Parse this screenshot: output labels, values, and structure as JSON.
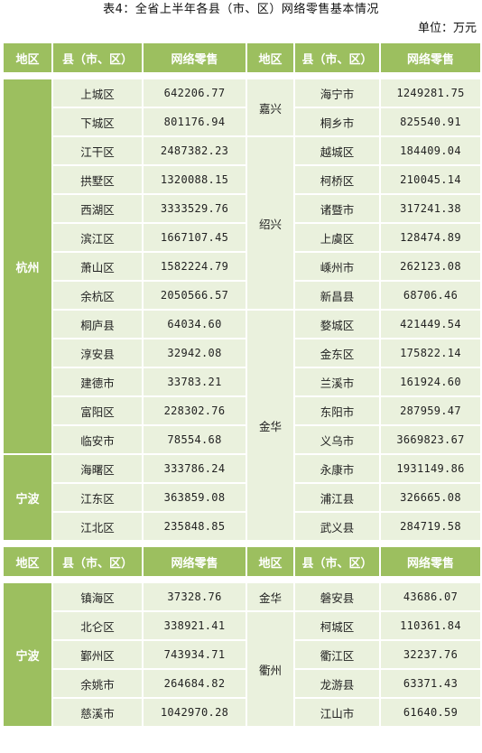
{
  "title": "表4：全省上半年各县（市、区）网络零售基本情况",
  "unit": "单位：万元",
  "headers": [
    "地区",
    "县（市、区）",
    "网络零售",
    "地区",
    "县（市、区）",
    "网络零售"
  ],
  "block1": {
    "left_regions": [
      "杭州",
      "宁波"
    ],
    "right_regions": [
      "嘉兴",
      "绍兴",
      "金华"
    ],
    "rows": [
      {
        "l_name": "上城区",
        "l_val": "642206.77",
        "r_name": "海宁市",
        "r_val": "1249281.75"
      },
      {
        "l_name": "下城区",
        "l_val": "801176.94",
        "r_name": "桐乡市",
        "r_val": "825540.91"
      },
      {
        "l_name": "江干区",
        "l_val": "2487382.23",
        "r_name": "越城区",
        "r_val": "184409.04"
      },
      {
        "l_name": "拱墅区",
        "l_val": "1320088.15",
        "r_name": "柯桥区",
        "r_val": "210045.14"
      },
      {
        "l_name": "西湖区",
        "l_val": "3333529.76",
        "r_name": "诸暨市",
        "r_val": "317241.38"
      },
      {
        "l_name": "滨江区",
        "l_val": "1667107.45",
        "r_name": "上虞区",
        "r_val": "128474.89"
      },
      {
        "l_name": "萧山区",
        "l_val": "1582224.79",
        "r_name": "嵊州市",
        "r_val": "262123.08"
      },
      {
        "l_name": "余杭区",
        "l_val": "2050566.57",
        "r_name": "新昌县",
        "r_val": "68706.46"
      },
      {
        "l_name": "桐庐县",
        "l_val": "64034.60",
        "r_name": "婺城区",
        "r_val": "421449.54"
      },
      {
        "l_name": "淳安县",
        "l_val": "32942.08",
        "r_name": "金东区",
        "r_val": "175822.14"
      },
      {
        "l_name": "建德市",
        "l_val": "33783.21",
        "r_name": "兰溪市",
        "r_val": "161924.60"
      },
      {
        "l_name": "富阳区",
        "l_val": "228302.76",
        "r_name": "东阳市",
        "r_val": "287959.47"
      },
      {
        "l_name": "临安市",
        "l_val": "78554.68",
        "r_name": "义乌市",
        "r_val": "3669823.67"
      },
      {
        "l_name": "海曙区",
        "l_val": "333786.24",
        "r_name": "永康市",
        "r_val": "1931149.86"
      },
      {
        "l_name": "江东区",
        "l_val": "363859.08",
        "r_name": "浦江县",
        "r_val": "326665.08"
      },
      {
        "l_name": "江北区",
        "l_val": "235848.85",
        "r_name": "武义县",
        "r_val": "284719.58"
      }
    ]
  },
  "block2": {
    "left_region": "宁波",
    "right_regions": [
      "金华",
      "衢州"
    ],
    "rows": [
      {
        "l_name": "镇海区",
        "l_val": "37328.76",
        "r_name": "磐安县",
        "r_val": "43686.07"
      },
      {
        "l_name": "北仑区",
        "l_val": "338921.41",
        "r_name": "柯城区",
        "r_val": "110361.84"
      },
      {
        "l_name": "鄞州区",
        "l_val": "743934.71",
        "r_name": "衢江区",
        "r_val": "32237.76"
      },
      {
        "l_name": "余姚市",
        "l_val": "264684.82",
        "r_name": "龙游县",
        "r_val": "63371.43"
      },
      {
        "l_name": "慈溪市",
        "l_val": "1042970.28",
        "r_name": "江山市",
        "r_val": "61640.59"
      }
    ]
  },
  "colors": {
    "header_green": "#9cbf5f",
    "cell_light": "#eaf1dd"
  }
}
